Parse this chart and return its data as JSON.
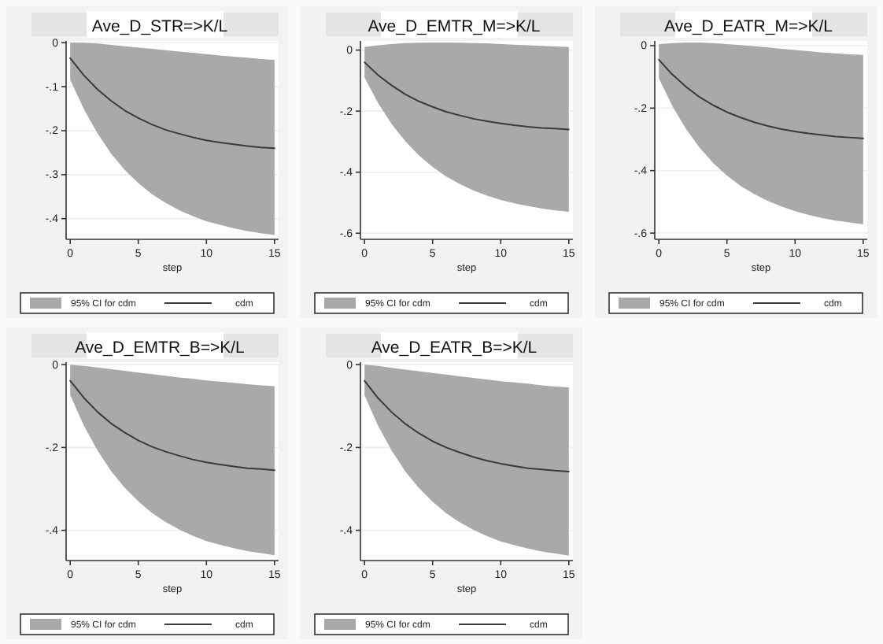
{
  "chart_data": [
    {
      "type": "line",
      "title": "Ave_D_STR=>K/L",
      "xlabel": "step",
      "x": [
        0,
        1,
        2,
        3,
        4,
        5,
        6,
        7,
        8,
        9,
        10,
        11,
        12,
        13,
        14,
        15
      ],
      "xlim": [
        -0.3,
        15.3
      ],
      "xticks": [
        0,
        5,
        10,
        15
      ],
      "ylim": [
        -0.447,
        0.004
      ],
      "yticks": [
        {
          "value": 0,
          "label": "0"
        },
        {
          "value": -0.1,
          "label": "-.1"
        },
        {
          "value": -0.2,
          "label": "-.2"
        },
        {
          "value": -0.3,
          "label": "-.3"
        },
        {
          "value": -0.4,
          "label": "-.4"
        }
      ],
      "grid": "y",
      "legend": "bottom",
      "annotations": [
        "95% CI for cdm"
      ],
      "series": [
        {
          "name": "cdm",
          "color": "#3a3a3a",
          "values": [
            -0.035,
            -0.074,
            -0.106,
            -0.132,
            -0.154,
            -0.171,
            -0.186,
            -0.198,
            -0.207,
            -0.215,
            -0.222,
            -0.227,
            -0.231,
            -0.235,
            -0.238,
            -0.24
          ],
          "lower": [
            -0.084,
            -0.151,
            -0.206,
            -0.252,
            -0.289,
            -0.319,
            -0.344,
            -0.364,
            -0.381,
            -0.394,
            -0.406,
            -0.414,
            -0.422,
            -0.428,
            -0.433,
            -0.437
          ],
          "upper": [
            0,
            0,
            -0.002,
            -0.005,
            -0.008,
            -0.011,
            -0.014,
            -0.017,
            -0.02,
            -0.023,
            -0.026,
            -0.029,
            -0.032,
            -0.034,
            -0.037,
            -0.039
          ]
        }
      ]
    },
    {
      "type": "line",
      "title": "Ave_D_EMTR_M=>K/L",
      "xlabel": "step",
      "x": [
        0,
        1,
        2,
        3,
        4,
        5,
        6,
        7,
        8,
        9,
        10,
        11,
        12,
        13,
        14,
        15
      ],
      "xlim": [
        -0.3,
        15.3
      ],
      "xticks": [
        0,
        5,
        10,
        15
      ],
      "ylim": [
        -0.62,
        0.03
      ],
      "yticks": [
        {
          "value": 0,
          "label": "0"
        },
        {
          "value": -0.2,
          "label": "-.2"
        },
        {
          "value": -0.4,
          "label": "-.4"
        },
        {
          "value": -0.6,
          "label": "-.6"
        }
      ],
      "grid": "y",
      "legend": "bottom",
      "annotations": [
        "95% CI for cdm"
      ],
      "series": [
        {
          "name": "cdm",
          "color": "#3a3a3a",
          "values": [
            -0.04,
            -0.082,
            -0.116,
            -0.145,
            -0.168,
            -0.186,
            -0.202,
            -0.214,
            -0.225,
            -0.233,
            -0.24,
            -0.246,
            -0.251,
            -0.255,
            -0.257,
            -0.26
          ],
          "lower": [
            -0.09,
            -0.174,
            -0.243,
            -0.299,
            -0.345,
            -0.383,
            -0.414,
            -0.439,
            -0.46,
            -0.477,
            -0.491,
            -0.502,
            -0.511,
            -0.519,
            -0.525,
            -0.53
          ],
          "upper": [
            0.01,
            0.016,
            0.02,
            0.023,
            0.024,
            0.025,
            0.025,
            0.024,
            0.023,
            0.022,
            0.02,
            0.018,
            0.016,
            0.014,
            0.012,
            0.01
          ]
        }
      ]
    },
    {
      "type": "line",
      "title": "Ave_D_EATR_M=>K/L",
      "xlabel": "step",
      "x": [
        0,
        1,
        2,
        3,
        4,
        5,
        6,
        7,
        8,
        9,
        10,
        11,
        12,
        13,
        14,
        15
      ],
      "xlim": [
        -0.3,
        15.3
      ],
      "xticks": [
        0,
        5,
        10,
        15
      ],
      "ylim": [
        -0.62,
        0.015
      ],
      "yticks": [
        {
          "value": 0,
          "label": "0"
        },
        {
          "value": -0.2,
          "label": "-.2"
        },
        {
          "value": -0.4,
          "label": "-.4"
        },
        {
          "value": -0.6,
          "label": "-.6"
        }
      ],
      "grid": "y",
      "legend": "bottom",
      "annotations": [
        "95% CI for cdm"
      ],
      "series": [
        {
          "name": "cdm",
          "color": "#3a3a3a",
          "values": [
            -0.045,
            -0.093,
            -0.132,
            -0.165,
            -0.191,
            -0.213,
            -0.23,
            -0.245,
            -0.257,
            -0.267,
            -0.275,
            -0.281,
            -0.286,
            -0.291,
            -0.294,
            -0.297
          ],
          "lower": [
            -0.105,
            -0.194,
            -0.267,
            -0.327,
            -0.376,
            -0.416,
            -0.449,
            -0.475,
            -0.497,
            -0.515,
            -0.53,
            -0.542,
            -0.552,
            -0.56,
            -0.566,
            -0.572
          ],
          "upper": [
            0.005,
            0.008,
            0.01,
            0.01,
            0.008,
            0.005,
            0.002,
            -0.002,
            -0.006,
            -0.01,
            -0.014,
            -0.018,
            -0.022,
            -0.025,
            -0.028,
            -0.03
          ]
        }
      ]
    },
    {
      "type": "line",
      "title": "Ave_D_EMTR_B=>K/L",
      "xlabel": "step",
      "x": [
        0,
        1,
        2,
        3,
        4,
        5,
        6,
        7,
        8,
        9,
        10,
        11,
        12,
        13,
        14,
        15
      ],
      "xlim": [
        -0.3,
        15.3
      ],
      "xticks": [
        0,
        5,
        10,
        15
      ],
      "ylim": [
        -0.473,
        0.006
      ],
      "yticks": [
        {
          "value": 0,
          "label": "0"
        },
        {
          "value": -0.2,
          "label": "-.2"
        },
        {
          "value": -0.4,
          "label": "-.4"
        }
      ],
      "grid": "y",
      "legend": "bottom",
      "annotations": [
        "95% CI for cdm"
      ],
      "series": [
        {
          "name": "cdm",
          "color": "#3a3a3a",
          "values": [
            -0.039,
            -0.08,
            -0.114,
            -0.142,
            -0.164,
            -0.183,
            -0.198,
            -0.21,
            -0.22,
            -0.229,
            -0.236,
            -0.241,
            -0.246,
            -0.25,
            -0.252,
            -0.255
          ],
          "lower": [
            -0.073,
            -0.147,
            -0.207,
            -0.257,
            -0.297,
            -0.33,
            -0.358,
            -0.38,
            -0.398,
            -0.413,
            -0.426,
            -0.435,
            -0.443,
            -0.45,
            -0.455,
            -0.46
          ],
          "upper": [
            0,
            -0.003,
            -0.007,
            -0.011,
            -0.015,
            -0.019,
            -0.023,
            -0.027,
            -0.031,
            -0.034,
            -0.038,
            -0.041,
            -0.044,
            -0.047,
            -0.05,
            -0.052
          ]
        }
      ]
    },
    {
      "type": "line",
      "title": "Ave_D_EATR_B=>K/L",
      "xlabel": "step",
      "x": [
        0,
        1,
        2,
        3,
        4,
        5,
        6,
        7,
        8,
        9,
        10,
        11,
        12,
        13,
        14,
        15
      ],
      "xlim": [
        -0.3,
        15.3
      ],
      "xticks": [
        0,
        5,
        10,
        15
      ],
      "ylim": [
        -0.473,
        0.006
      ],
      "yticks": [
        {
          "value": 0,
          "label": "0"
        },
        {
          "value": -0.2,
          "label": "-.2"
        },
        {
          "value": -0.4,
          "label": "-.4"
        }
      ],
      "grid": "y",
      "legend": "bottom",
      "annotations": [
        "95% CI for cdm"
      ],
      "series": [
        {
          "name": "cdm",
          "color": "#3a3a3a",
          "values": [
            -0.039,
            -0.081,
            -0.115,
            -0.143,
            -0.166,
            -0.185,
            -0.2,
            -0.212,
            -0.223,
            -0.232,
            -0.239,
            -0.245,
            -0.25,
            -0.253,
            -0.256,
            -0.258
          ],
          "lower": [
            -0.074,
            -0.148,
            -0.208,
            -0.258,
            -0.298,
            -0.331,
            -0.359,
            -0.381,
            -0.399,
            -0.414,
            -0.427,
            -0.436,
            -0.444,
            -0.451,
            -0.456,
            -0.461
          ],
          "upper": [
            0,
            -0.003,
            -0.008,
            -0.012,
            -0.016,
            -0.02,
            -0.024,
            -0.028,
            -0.032,
            -0.036,
            -0.04,
            -0.043,
            -0.046,
            -0.05,
            -0.053,
            -0.055
          ]
        }
      ]
    }
  ]
}
